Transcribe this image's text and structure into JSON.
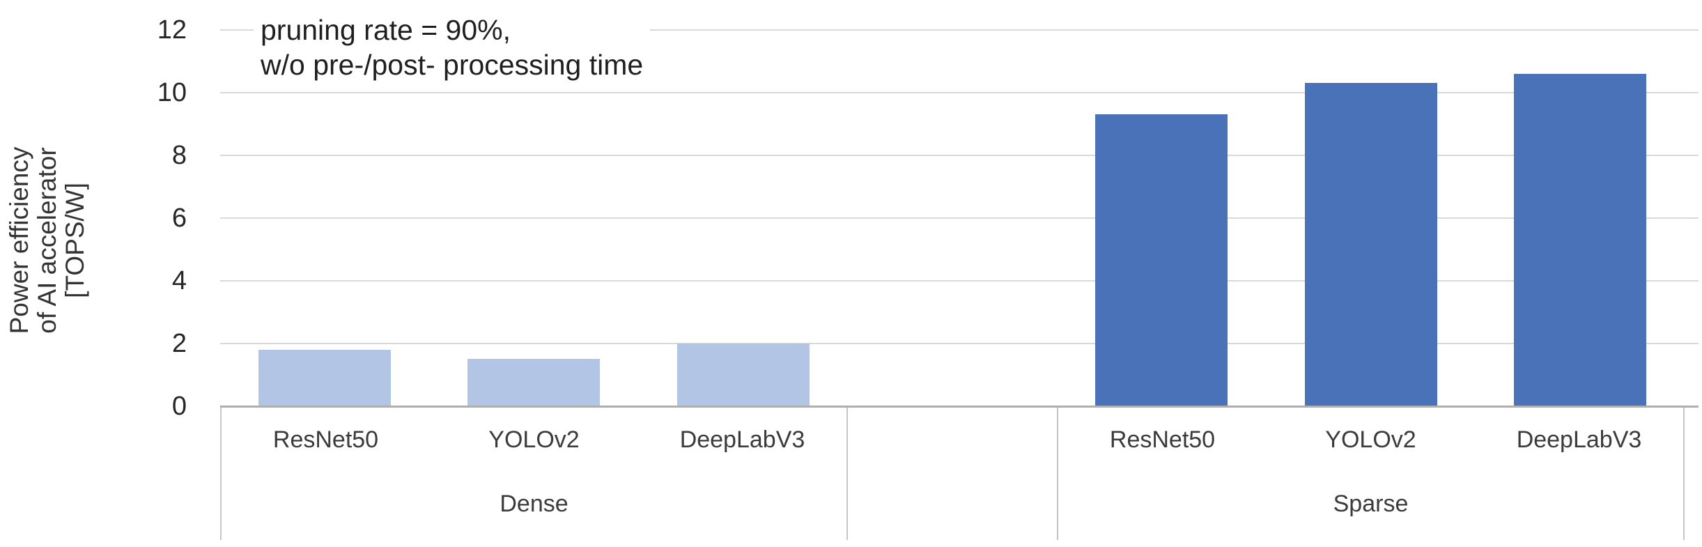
{
  "chart_data": {
    "type": "bar",
    "title": "",
    "ylabel_lines": [
      "Power efficiency",
      "of AI accelerator",
      "[TOPS/W]"
    ],
    "ylabel": "Power efficiency of AI accelerator [TOPS/W]",
    "xlabel": "",
    "annotation_lines": [
      "pruning rate = 90%,",
      "w/o pre-/post- processing time"
    ],
    "y_ticks": [
      0,
      2,
      4,
      6,
      8,
      10,
      12
    ],
    "ylim": [
      0,
      12
    ],
    "grid": "horizontal",
    "legend": "none",
    "categories": [
      "ResNet50",
      "YOLOv2",
      "DeepLabV3"
    ],
    "groups": [
      {
        "label": "Dense",
        "categories": [
          "ResNet50",
          "YOLOv2",
          "DeepLabV3"
        ],
        "values": [
          1.8,
          1.5,
          2.0
        ],
        "bar_color": "#b2c5e4"
      },
      {
        "label": "Sparse",
        "categories": [
          "ResNet50",
          "YOLOv2",
          "DeepLabV3"
        ],
        "values": [
          9.3,
          10.3,
          10.6
        ],
        "bar_color": "#4a72b8"
      }
    ],
    "colors": {
      "gridline": "#d9d9d9",
      "axis_line": "#aeaeae",
      "category_border": "#c6c6c6",
      "text": "#262626"
    }
  }
}
